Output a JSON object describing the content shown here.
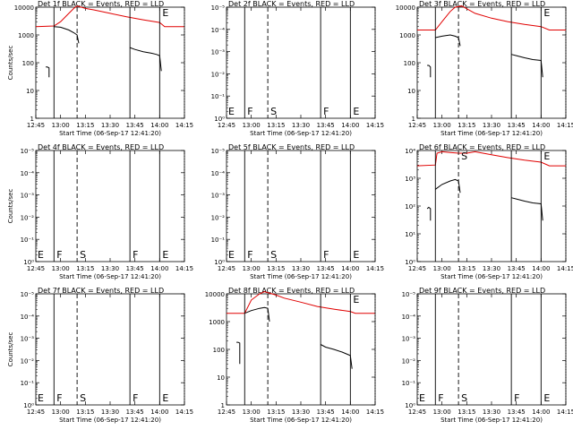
{
  "figure": {
    "xlabel": "Start Time (06-Sep-17 12:41:20)",
    "colors": {
      "events": "#000000",
      "lld": "#e00000",
      "axis": "#000000",
      "background": "#ffffff"
    },
    "x_ticks": [
      "12:45",
      "13:00",
      "13:15",
      "13:30",
      "13:45",
      "14:00",
      "14:15"
    ],
    "log_ticks_numeric": [
      "1",
      "10",
      "100",
      "1000",
      "10000"
    ],
    "log_ticks_sci": [
      "10⁰",
      "10⁻¹",
      "10⁻²",
      "10⁻³",
      "10⁻⁴",
      "10⁻⁵"
    ],
    "log_ticks_pos": [
      "10⁰",
      "10¹",
      "10²",
      "10³",
      "10⁴"
    ]
  },
  "chart_data": [
    {
      "type": "line",
      "title": "Det 1f BLACK = Events, RED = LLD",
      "ylabel": "Counts/sec",
      "xlabel": "Start Time (06-Sep-17 12:41:20)",
      "yscale": "log",
      "ylim": [
        1,
        10000
      ],
      "tick_set": "numeric",
      "xlim": [
        "12:45",
        "14:15"
      ],
      "markers": [
        {
          "x": "12:56",
          "style": "solid",
          "label": ""
        },
        {
          "x": "13:10",
          "style": "dashed",
          "label": ""
        },
        {
          "x": "13:42",
          "style": "solid",
          "label": ""
        },
        {
          "x": "14:00",
          "style": "solid",
          "label": "E"
        },
        {
          "x": "14:15",
          "style": "dotted",
          "label": ""
        }
      ],
      "series": [
        {
          "name": "Events",
          "color": "#000000",
          "segments": [
            [
              [
                "12:51",
                70
              ],
              [
                "12:52",
                70
              ],
              [
                "12:53",
                65
              ],
              [
                "12:53",
                30
              ]
            ],
            [
              [
                "12:56",
                2000
              ],
              [
                "13:00",
                1900
              ],
              [
                "13:05",
                1500
              ],
              [
                "13:08",
                1200
              ],
              [
                "13:10",
                1000
              ],
              [
                "13:11",
                500
              ]
            ],
            [
              [
                "13:42",
                350
              ],
              [
                "13:45",
                300
              ],
              [
                "13:50",
                250
              ],
              [
                "13:55",
                220
              ],
              [
                "13:58",
                200
              ],
              [
                "14:00",
                180
              ],
              [
                "14:01",
                50
              ]
            ]
          ]
        },
        {
          "name": "LLD",
          "color": "#e00000",
          "segments": [
            [
              [
                "12:45",
                2000
              ],
              [
                "12:56",
                2100
              ],
              [
                "13:00",
                3000
              ],
              [
                "13:05",
                6000
              ],
              [
                "13:08",
                9000
              ],
              [
                "13:10",
                11000
              ],
              [
                "13:15",
                9000
              ],
              [
                "13:20",
                8000
              ],
              [
                "13:30",
                6000
              ],
              [
                "13:40",
                4500
              ],
              [
                "13:50",
                3500
              ],
              [
                "14:00",
                2800
              ],
              [
                "14:03",
                2000
              ],
              [
                "14:15",
                2000
              ]
            ]
          ]
        }
      ]
    },
    {
      "type": "line",
      "title": "Det 2f BLACK = Events, RED = LLD",
      "ylabel": "",
      "xlabel": "Start Time (06-Sep-17 12:41:20)",
      "yscale": "log",
      "ylim": [
        1e-05,
        1
      ],
      "tick_set": "sci",
      "xlim": [
        "12:45",
        "14:15"
      ],
      "markers": [
        {
          "x": "12:45",
          "style": "none",
          "label": "E"
        },
        {
          "x": "12:56",
          "style": "solid",
          "label": "F"
        },
        {
          "x": "13:10",
          "style": "dashed",
          "label": "S"
        },
        {
          "x": "13:42",
          "style": "solid",
          "label": "F"
        },
        {
          "x": "14:00",
          "style": "solid",
          "label": "E"
        },
        {
          "x": "14:15",
          "style": "dotted",
          "label": ""
        }
      ],
      "series": []
    },
    {
      "type": "line",
      "title": "Det 3f BLACK = Events, RED = LLD",
      "ylabel": "",
      "xlabel": "Start Time (06-Sep-17 12:41:20)",
      "yscale": "log",
      "ylim": [
        1,
        10000
      ],
      "tick_set": "numeric",
      "xlim": [
        "12:45",
        "14:15"
      ],
      "markers": [
        {
          "x": "12:56",
          "style": "solid",
          "label": ""
        },
        {
          "x": "13:10",
          "style": "dashed",
          "label": ""
        },
        {
          "x": "13:42",
          "style": "solid",
          "label": ""
        },
        {
          "x": "14:00",
          "style": "solid",
          "label": "E"
        },
        {
          "x": "14:15",
          "style": "dotted",
          "label": ""
        }
      ],
      "series": [
        {
          "name": "Events",
          "color": "#000000",
          "segments": [
            [
              [
                "12:51",
                80
              ],
              [
                "12:52",
                80
              ],
              [
                "12:53",
                70
              ],
              [
                "12:53",
                30
              ]
            ],
            [
              [
                "12:56",
                800
              ],
              [
                "13:00",
                900
              ],
              [
                "13:05",
                1000
              ],
              [
                "13:08",
                900
              ],
              [
                "13:10",
                800
              ],
              [
                "13:11",
                400
              ]
            ],
            [
              [
                "13:42",
                200
              ],
              [
                "13:45",
                180
              ],
              [
                "13:50",
                150
              ],
              [
                "13:55",
                130
              ],
              [
                "14:00",
                120
              ],
              [
                "14:01",
                30
              ]
            ]
          ]
        },
        {
          "name": "LLD",
          "color": "#e00000",
          "segments": [
            [
              [
                "12:45",
                1500
              ],
              [
                "12:56",
                1500
              ],
              [
                "13:00",
                3000
              ],
              [
                "13:05",
                7000
              ],
              [
                "13:08",
                10000
              ],
              [
                "13:12",
                11000
              ],
              [
                "13:20",
                6000
              ],
              [
                "13:30",
                4000
              ],
              [
                "13:40",
                3000
              ],
              [
                "13:50",
                2400
              ],
              [
                "14:00",
                2000
              ],
              [
                "14:05",
                1500
              ],
              [
                "14:15",
                1500
              ]
            ]
          ]
        }
      ]
    },
    {
      "type": "line",
      "title": "Det 4f BLACK = Events, RED = LLD",
      "ylabel": "Counts/sec",
      "xlabel": "Start Time (06-Sep-17 12:41:20)",
      "yscale": "log",
      "ylim": [
        1e-05,
        1
      ],
      "tick_set": "sci",
      "xlim": [
        "12:45",
        "14:15"
      ],
      "markers": [
        {
          "x": "12:45",
          "style": "none",
          "label": "E"
        },
        {
          "x": "12:56",
          "style": "solid",
          "label": "F"
        },
        {
          "x": "13:10",
          "style": "dashed",
          "label": "S"
        },
        {
          "x": "13:42",
          "style": "solid",
          "label": "F"
        },
        {
          "x": "14:00",
          "style": "solid",
          "label": "E"
        },
        {
          "x": "14:15",
          "style": "dotted",
          "label": ""
        }
      ],
      "series": []
    },
    {
      "type": "line",
      "title": "Det 5f BLACK = Events, RED = LLD",
      "ylabel": "",
      "xlabel": "Start Time (06-Sep-17 12:41:20)",
      "yscale": "log",
      "ylim": [
        1e-05,
        1
      ],
      "tick_set": "sci",
      "xlim": [
        "12:45",
        "14:15"
      ],
      "markers": [
        {
          "x": "12:45",
          "style": "none",
          "label": "E"
        },
        {
          "x": "12:56",
          "style": "solid",
          "label": "F"
        },
        {
          "x": "13:10",
          "style": "dashed",
          "label": "S"
        },
        {
          "x": "13:42",
          "style": "solid",
          "label": "F"
        },
        {
          "x": "14:00",
          "style": "solid",
          "label": "E"
        },
        {
          "x": "14:15",
          "style": "dotted",
          "label": ""
        }
      ],
      "series": []
    },
    {
      "type": "line",
      "title": "Det 6f BLACK = Events, RED = LLD",
      "ylabel": "",
      "xlabel": "Start Time (06-Sep-17 12:41:20)",
      "yscale": "log",
      "ylim": [
        1,
        10000
      ],
      "tick_set": "pos",
      "xlim": [
        "12:45",
        "14:15"
      ],
      "markers": [
        {
          "x": "12:56",
          "style": "solid",
          "label": ""
        },
        {
          "x": "13:10",
          "style": "dashed",
          "label": "S"
        },
        {
          "x": "13:42",
          "style": "solid",
          "label": ""
        },
        {
          "x": "14:00",
          "style": "solid",
          "label": "E"
        },
        {
          "x": "14:15",
          "style": "dotted",
          "label": ""
        }
      ],
      "series": [
        {
          "name": "Events",
          "color": "#000000",
          "segments": [
            [
              [
                "12:51",
                80
              ],
              [
                "12:52",
                90
              ],
              [
                "12:53",
                80
              ],
              [
                "12:53",
                30
              ]
            ],
            [
              [
                "12:56",
                400
              ],
              [
                "13:00",
                600
              ],
              [
                "13:05",
                800
              ],
              [
                "13:08",
                900
              ],
              [
                "13:10",
                800
              ],
              [
                "13:11",
                300
              ]
            ],
            [
              [
                "13:42",
                200
              ],
              [
                "13:45",
                180
              ],
              [
                "13:50",
                150
              ],
              [
                "13:55",
                130
              ],
              [
                "14:00",
                120
              ],
              [
                "14:01",
                30
              ]
            ]
          ]
        },
        {
          "name": "LLD",
          "color": "#e00000",
          "segments": [
            [
              [
                "12:45",
                2800
              ],
              [
                "12:56",
                3000
              ],
              [
                "12:57",
                8000
              ],
              [
                "13:00",
                9000
              ],
              [
                "13:05",
                8500
              ],
              [
                "13:10",
                8000
              ],
              [
                "13:15",
                8000
              ],
              [
                "13:20",
                9000
              ],
              [
                "13:30",
                7000
              ],
              [
                "13:40",
                5500
              ],
              [
                "13:50",
                4500
              ],
              [
                "14:00",
                3800
              ],
              [
                "14:05",
                2800
              ],
              [
                "14:15",
                2800
              ]
            ]
          ]
        }
      ]
    },
    {
      "type": "line",
      "title": "Det 7f BLACK = Events, RED = LLD",
      "ylabel": "Counts/sec",
      "xlabel": "Start Time (06-Sep-17 12:41:20)",
      "yscale": "log",
      "ylim": [
        1e-05,
        1
      ],
      "tick_set": "sci",
      "xlim": [
        "12:45",
        "14:15"
      ],
      "markers": [
        {
          "x": "12:45",
          "style": "none",
          "label": "E"
        },
        {
          "x": "12:56",
          "style": "solid",
          "label": "F"
        },
        {
          "x": "13:10",
          "style": "dashed",
          "label": "S"
        },
        {
          "x": "13:42",
          "style": "solid",
          "label": "F"
        },
        {
          "x": "14:00",
          "style": "solid",
          "label": "E"
        },
        {
          "x": "14:15",
          "style": "dotted",
          "label": ""
        }
      ],
      "series": []
    },
    {
      "type": "line",
      "title": "Det 8f BLACK = Events, RED = LLD",
      "ylabel": "",
      "xlabel": "Start Time (06-Sep-17 12:41:20)",
      "yscale": "log",
      "ylim": [
        1,
        10000
      ],
      "tick_set": "numeric",
      "xlim": [
        "12:45",
        "14:15"
      ],
      "markers": [
        {
          "x": "12:56",
          "style": "solid",
          "label": ""
        },
        {
          "x": "13:10",
          "style": "dashed",
          "label": ""
        },
        {
          "x": "13:42",
          "style": "solid",
          "label": ""
        },
        {
          "x": "14:00",
          "style": "solid",
          "label": "E"
        },
        {
          "x": "14:15",
          "style": "dotted",
          "label": ""
        }
      ],
      "series": [
        {
          "name": "Events",
          "color": "#000000",
          "segments": [
            [
              [
                "12:51",
                180
              ],
              [
                "12:52",
                180
              ],
              [
                "12:53",
                170
              ],
              [
                "12:53",
                30
              ]
            ],
            [
              [
                "12:56",
                2000
              ],
              [
                "13:00",
                2500
              ],
              [
                "13:05",
                3000
              ],
              [
                "13:08",
                3200
              ],
              [
                "13:10",
                3000
              ],
              [
                "13:11",
                1000
              ]
            ],
            [
              [
                "13:42",
                150
              ],
              [
                "13:45",
                120
              ],
              [
                "13:50",
                100
              ],
              [
                "13:55",
                80
              ],
              [
                "14:00",
                60
              ],
              [
                "14:01",
                20
              ]
            ]
          ]
        },
        {
          "name": "LLD",
          "color": "#e00000",
          "segments": [
            [
              [
                "12:45",
                2000
              ],
              [
                "12:56",
                2000
              ],
              [
                "13:00",
                6000
              ],
              [
                "13:05",
                10000
              ],
              [
                "13:08",
                12000
              ],
              [
                "13:15",
                9000
              ],
              [
                "13:20",
                7000
              ],
              [
                "13:30",
                5000
              ],
              [
                "13:40",
                3500
              ],
              [
                "13:50",
                2800
              ],
              [
                "14:00",
                2300
              ],
              [
                "14:03",
                2000
              ],
              [
                "14:15",
                2000
              ]
            ]
          ]
        }
      ]
    },
    {
      "type": "line",
      "title": "Det 9f BLACK = Events, RED = LLD",
      "ylabel": "",
      "xlabel": "Start Time (06-Sep-17 12:41:20)",
      "yscale": "log",
      "ylim": [
        1e-05,
        1
      ],
      "tick_set": "sci",
      "xlim": [
        "12:45",
        "14:15"
      ],
      "markers": [
        {
          "x": "12:45",
          "style": "none",
          "label": "E"
        },
        {
          "x": "12:56",
          "style": "solid",
          "label": "F"
        },
        {
          "x": "13:10",
          "style": "dashed",
          "label": "S"
        },
        {
          "x": "13:42",
          "style": "solid",
          "label": "F"
        },
        {
          "x": "14:00",
          "style": "solid",
          "label": "E"
        },
        {
          "x": "14:15",
          "style": "dotted",
          "label": ""
        }
      ],
      "series": []
    }
  ]
}
